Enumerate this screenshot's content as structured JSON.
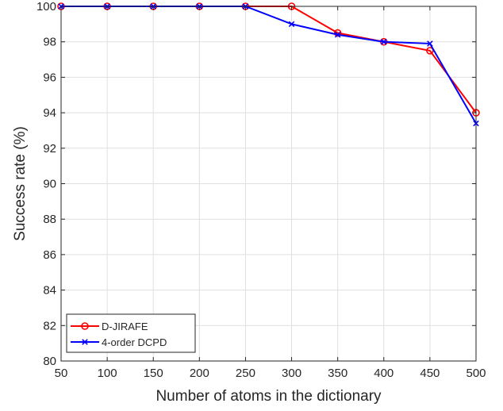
{
  "chart_data": {
    "type": "line",
    "title": "",
    "xlabel": "Number of atoms in the dictionary",
    "ylabel": "Success rate  (%)",
    "xlim": [
      50,
      500
    ],
    "ylim": [
      80,
      100
    ],
    "xticks": [
      50,
      100,
      150,
      200,
      250,
      300,
      350,
      400,
      450,
      500
    ],
    "yticks": [
      80,
      82,
      84,
      86,
      88,
      90,
      92,
      94,
      96,
      98,
      100
    ],
    "grid": true,
    "legend_position": "bottom-left",
    "x": [
      50,
      100,
      150,
      200,
      250,
      300,
      350,
      400,
      450,
      500
    ],
    "series": [
      {
        "name": "D-JIRAFE",
        "color": "#ff0000",
        "marker": "circle",
        "values": [
          100,
          100,
          100,
          100,
          100,
          100,
          98.5,
          98.0,
          97.5,
          94.0
        ]
      },
      {
        "name": "4-order DCPD",
        "color": "#0000ff",
        "marker": "x",
        "values": [
          100,
          100,
          100,
          100,
          100,
          99.0,
          98.4,
          98.0,
          97.9,
          93.4
        ]
      }
    ]
  }
}
